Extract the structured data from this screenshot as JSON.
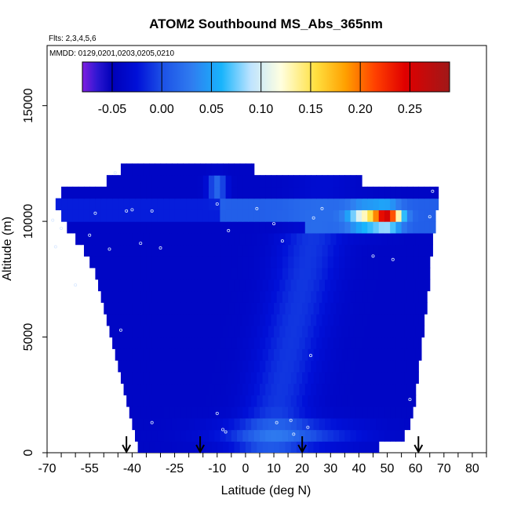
{
  "chart_data": {
    "type": "heatmap",
    "title": "ATOM2 Southbound MS_Abs_365nm",
    "flights_note": "Flts: 2,3,4,5,6",
    "dates_note": "MMDD: 0129,0201,0203,0205,0210",
    "xlabel": "Latitude (deg N)",
    "ylabel": "Altitude (m)",
    "xlim": [
      -70,
      85
    ],
    "ylim": [
      0,
      17600
    ],
    "x_ticks": [
      -70,
      -55,
      -40,
      -25,
      -10,
      0,
      10,
      20,
      30,
      40,
      50,
      60,
      70,
      80
    ],
    "x_tick_labels": [
      "-70",
      "-55",
      "-40",
      "-25",
      "-10",
      "0",
      "10",
      "20",
      "30",
      "40",
      "50",
      "60",
      "70",
      "80"
    ],
    "x_minor_ticks": [
      -65,
      -60,
      -50,
      -45,
      -35,
      -30,
      -20,
      -15,
      -5,
      5,
      15,
      25,
      35,
      45,
      55,
      65,
      75,
      85
    ],
    "y_ticks": [
      0,
      5000,
      10000,
      15000
    ],
    "y_tick_labels": [
      "0",
      "5000",
      "10000",
      "15000"
    ],
    "colorbar": {
      "range": [
        -0.08,
        0.29
      ],
      "tick_values": [
        -0.05,
        0.0,
        0.05,
        0.1,
        0.15,
        0.2,
        0.25
      ],
      "tick_labels": [
        "-0.05",
        "0.00",
        "0.05",
        "0.10",
        "0.15",
        "0.20",
        "0.25"
      ],
      "colors": [
        "#7f1fe0",
        "#2d17d2",
        "#0000b8",
        "#0010d8",
        "#1c50e6",
        "#2f7cf0",
        "#18b4fc",
        "#bfe4ff",
        "#ffffe0",
        "#ffe040",
        "#ffa000",
        "#ff4000",
        "#e00000",
        "#a01818"
      ],
      "color_stops": [
        -0.08,
        -0.065,
        -0.05,
        -0.025,
        0.0,
        0.03,
        0.06,
        0.09,
        0.12,
        0.155,
        0.185,
        0.215,
        0.245,
        0.29
      ]
    },
    "altitude_bins_m": [
      0,
      500,
      1000,
      1500,
      2000,
      2500,
      3000,
      3500,
      4000,
      4500,
      5000,
      5500,
      6000,
      6500,
      7000,
      7500,
      8000,
      8500,
      9000,
      9500,
      10000,
      10500,
      11000,
      11500,
      12000
    ],
    "latitude_extent_by_bin": [
      [
        -38,
        47
      ],
      [
        -39,
        56
      ],
      [
        -40,
        58
      ],
      [
        -41,
        59
      ],
      [
        -42,
        60
      ],
      [
        -43,
        60
      ],
      [
        -44,
        61
      ],
      [
        -45,
        61
      ],
      [
        -46,
        62
      ],
      [
        -47,
        62
      ],
      [
        -48,
        63
      ],
      [
        -49,
        63
      ],
      [
        -50,
        64
      ],
      [
        -51,
        64
      ],
      [
        -52,
        65
      ],
      [
        -53,
        65
      ],
      [
        -55,
        65
      ],
      [
        -57,
        66
      ],
      [
        -60,
        66
      ],
      [
        -63,
        67
      ],
      [
        -65,
        67
      ],
      [
        -67,
        68
      ],
      [
        -65,
        68
      ],
      [
        -49,
        41
      ],
      [
        -44,
        3
      ]
    ],
    "observation_points": [
      {
        "lat": -46,
        "alt": 12100
      },
      {
        "lat": -65,
        "alt": 9700
      },
      {
        "lat": -68,
        "alt": 10050
      },
      {
        "lat": -67,
        "alt": 8900
      },
      {
        "lat": -55,
        "alt": 9400
      },
      {
        "lat": -48,
        "alt": 8800
      },
      {
        "lat": -37,
        "alt": 9050
      },
      {
        "lat": -30,
        "alt": 8850
      },
      {
        "lat": -42,
        "alt": 10450
      },
      {
        "lat": -40,
        "alt": 10500
      },
      {
        "lat": -33,
        "alt": 10450
      },
      {
        "lat": -53,
        "alt": 10350
      },
      {
        "lat": -10,
        "alt": 10750
      },
      {
        "lat": -6,
        "alt": 9600
      },
      {
        "lat": 4,
        "alt": 10550
      },
      {
        "lat": 10,
        "alt": 9900
      },
      {
        "lat": 13,
        "alt": 9150
      },
      {
        "lat": 24,
        "alt": 10150
      },
      {
        "lat": 27,
        "alt": 10550
      },
      {
        "lat": 45,
        "alt": 8500
      },
      {
        "lat": 52,
        "alt": 8350
      },
      {
        "lat": 66,
        "alt": 11300
      },
      {
        "lat": 65,
        "alt": 10200
      },
      {
        "lat": -60,
        "alt": 7250
      },
      {
        "lat": -44,
        "alt": 5300
      },
      {
        "lat": 23,
        "alt": 4200
      },
      {
        "lat": -10,
        "alt": 1700
      },
      {
        "lat": -33,
        "alt": 1300
      },
      {
        "lat": 11,
        "alt": 1300
      },
      {
        "lat": 16,
        "alt": 1400
      },
      {
        "lat": 22,
        "alt": 1100
      },
      {
        "lat": -8,
        "alt": 1000
      },
      {
        "lat": -7,
        "alt": 900
      },
      {
        "lat": 17,
        "alt": 800
      },
      {
        "lat": 58,
        "alt": 2300
      }
    ],
    "arrows_lat": [
      -42,
      -16,
      20,
      61
    ]
  }
}
